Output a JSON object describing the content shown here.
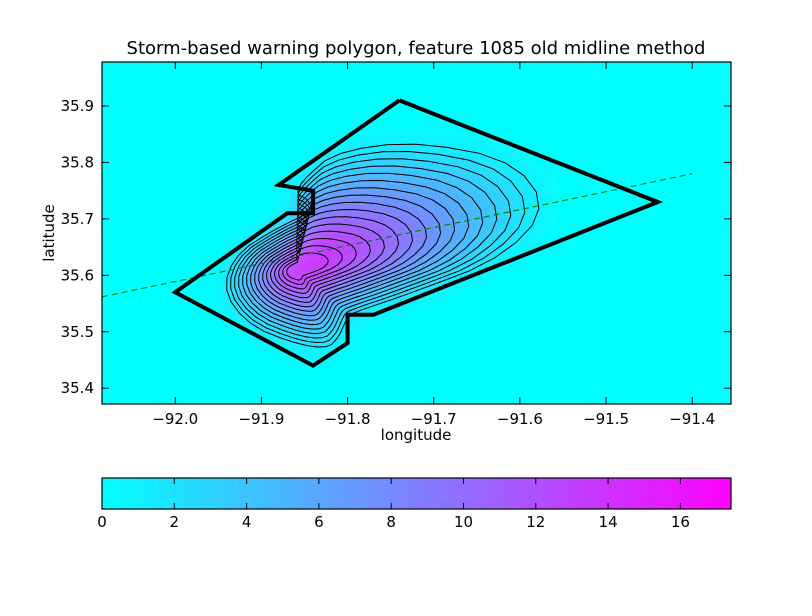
{
  "chart_data": {
    "type": "heatmap",
    "title": "Storm-based warning polygon, feature 1085 old midline method",
    "xlabel": "longitude",
    "ylabel": "latitude",
    "xlim": [
      -92.085,
      -91.355
    ],
    "ylim": [
      35.372,
      35.978
    ],
    "xticks": [
      -92.0,
      -91.9,
      -91.8,
      -91.7,
      -91.6,
      -91.5,
      -91.4
    ],
    "xtick_labels": [
      "−92.0",
      "−91.9",
      "−91.8",
      "−91.7",
      "−91.6",
      "−91.5",
      "−91.4"
    ],
    "yticks": [
      35.4,
      35.5,
      35.6,
      35.7,
      35.8,
      35.9
    ],
    "ytick_labels": [
      "35.4",
      "35.5",
      "35.6",
      "35.7",
      "35.8",
      "35.9"
    ],
    "colormap": {
      "low": "#00ffff",
      "high": "#ff00ff"
    },
    "colorbar": {
      "range": [
        0,
        17.4
      ],
      "ticks": [
        0,
        2,
        4,
        6,
        8,
        10,
        12,
        14,
        16
      ],
      "tick_labels": [
        "0",
        "2",
        "4",
        "6",
        "8",
        "10",
        "12",
        "14",
        "16"
      ]
    },
    "field": {
      "peak_value": 17.4,
      "peak_location": [
        -91.86,
        35.61
      ],
      "contour_levels": [
        1,
        2,
        3,
        4,
        5,
        6,
        7,
        8,
        9,
        10,
        11,
        12,
        13,
        14,
        15,
        16
      ]
    },
    "warning_polygon": {
      "color": "#000000",
      "lon": [
        -91.74,
        -91.44,
        -91.77,
        -91.8,
        -91.8,
        -91.84,
        -92.0,
        -91.87,
        -91.84,
        -91.84,
        -91.88,
        -91.74
      ],
      "lat": [
        35.91,
        35.73,
        35.53,
        35.53,
        35.48,
        35.44,
        35.57,
        35.71,
        35.71,
        35.75,
        35.76,
        35.91
      ]
    },
    "midline": {
      "color": "#008000",
      "style": "dashed",
      "lon": [
        -92.085,
        -91.4
      ],
      "lat": [
        35.562,
        35.78
      ]
    },
    "grid": false
  }
}
